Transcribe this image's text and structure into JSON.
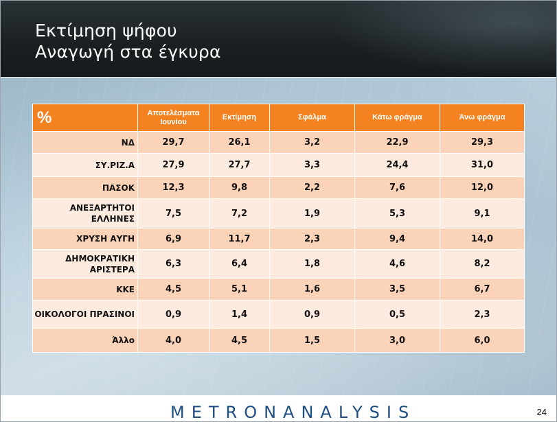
{
  "header": {
    "title_line1": "Εκτίμηση ψήφου",
    "title_line2": "Αναγωγή στα έγκυρα"
  },
  "table": {
    "corner_label": "%",
    "columns": [
      "Αποτελέσματα Ιουνίου",
      "Εκτίμηση",
      "Σφάλμα",
      "Κάτω φράγμα",
      "Άνω φράγμα"
    ],
    "rows": [
      {
        "party": "ΝΔ",
        "values": [
          "29,7",
          "26,1",
          "3,2",
          "22,9",
          "29,3"
        ]
      },
      {
        "party": "ΣΥ.ΡΙΖ.Α",
        "values": [
          "27,9",
          "27,7",
          "3,3",
          "24,4",
          "31,0"
        ]
      },
      {
        "party": "ΠΑΣΟΚ",
        "values": [
          "12,3",
          "9,8",
          "2,2",
          "7,6",
          "12,0"
        ]
      },
      {
        "party": "ΑΝΕΞΑΡΤΗΤΟΙ ΕΛΛΗΝΕΣ",
        "values": [
          "7,5",
          "7,2",
          "1,9",
          "5,3",
          "9,1"
        ]
      },
      {
        "party": "ΧΡΥΣΗ ΑΥΓΗ",
        "values": [
          "6,9",
          "11,7",
          "2,3",
          "9,4",
          "14,0"
        ]
      },
      {
        "party": "ΔΗΜΟΚΡΑΤΙΚΗ ΑΡΙΣΤΕΡΑ",
        "values": [
          "6,3",
          "6,4",
          "1,8",
          "4,6",
          "8,2"
        ]
      },
      {
        "party": "ΚΚΕ",
        "values": [
          "4,5",
          "5,1",
          "1,6",
          "3,5",
          "6,7"
        ]
      },
      {
        "party": "ΟΙΚΟΛΟΓΟΙ ΠΡΑΣΙΝΟΙ",
        "values": [
          "0,9",
          "1,4",
          "0,9",
          "0,5",
          "2,3"
        ]
      },
      {
        "party": "Άλλο",
        "values": [
          "4,0",
          "4,5",
          "1,5",
          "3,0",
          "6,0"
        ]
      }
    ]
  },
  "footer": {
    "logo": "METRONANALYSIS",
    "page_number": "24"
  },
  "colors": {
    "header_orange": "#f58220",
    "row_dark": "#fbd3b8",
    "row_light": "#fdebe0",
    "logo_blue": "#1f4f82"
  }
}
